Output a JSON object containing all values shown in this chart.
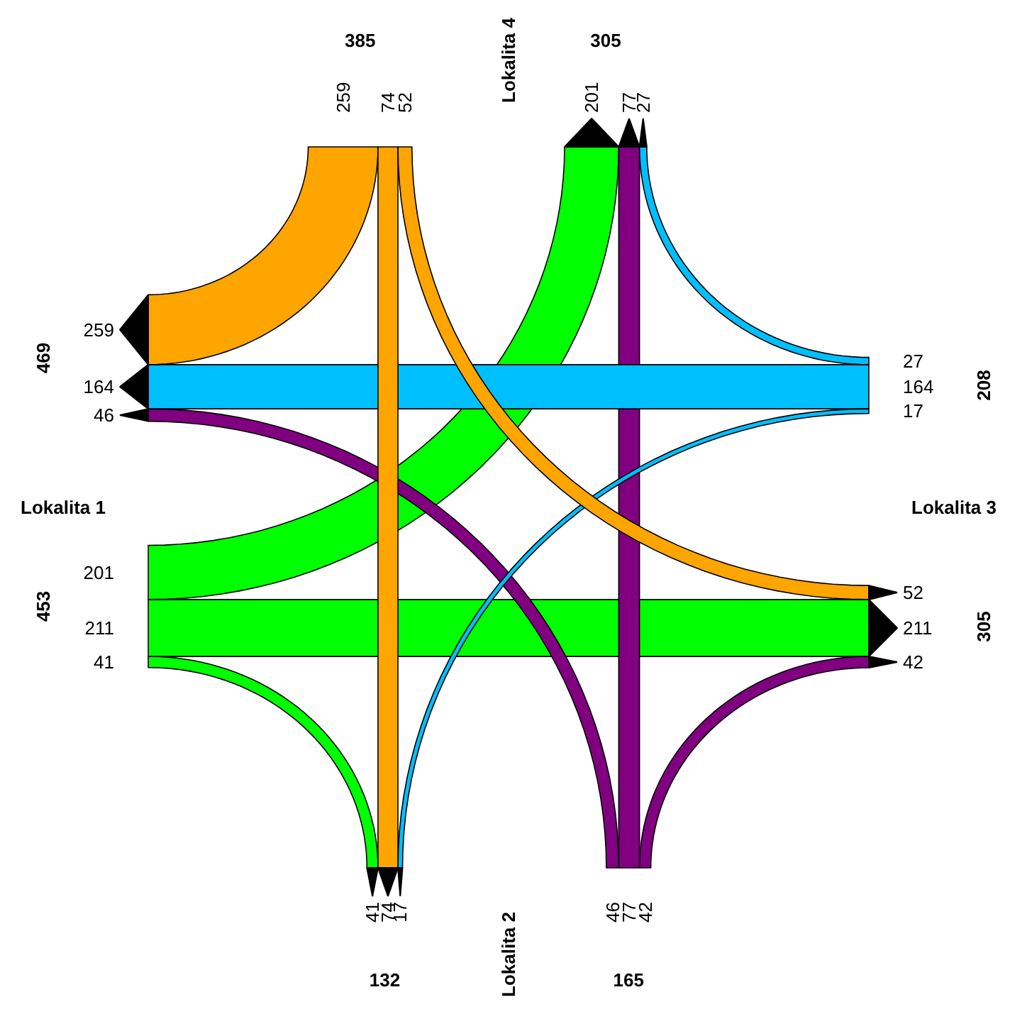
{
  "chart_data": {
    "type": "other",
    "categories": [
      "Lokalita 1",
      "Lokalita 2",
      "Lokalita 3",
      "Lokalita 4"
    ],
    "series": [
      {
        "color": "#00ff00",
        "values": [
          null,
          41,
          211,
          201
        ]
      },
      {
        "color": "#800080",
        "values": [
          46,
          null,
          42,
          77
        ]
      },
      {
        "color": "#00bfff",
        "values": [
          164,
          17,
          null,
          27
        ]
      },
      {
        "color": "#ffa500",
        "values": [
          259,
          74,
          52,
          null
        ]
      }
    ],
    "annotations": [
      "41",
      "211",
      "201",
      "46",
      "42",
      "77",
      "164",
      "17",
      "27",
      "259",
      "74",
      "52"
    ],
    "totals": [
      [
        "453",
        "469"
      ],
      [
        "165",
        "132"
      ],
      [
        "208",
        "305"
      ],
      [
        "385",
        "305"
      ]
    ],
    "data_labels": true
  }
}
